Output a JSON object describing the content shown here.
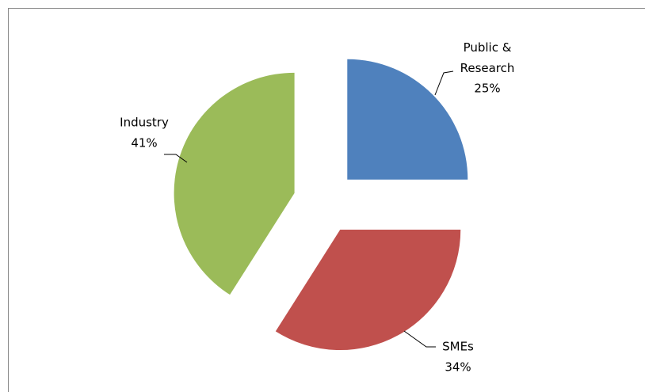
{
  "chart_data": {
    "type": "pie",
    "categories": [
      "Public & Research",
      "SMEs",
      "Industry"
    ],
    "values": [
      25,
      34,
      41
    ],
    "value_labels": [
      "25%",
      "34%",
      "41%"
    ],
    "colors": [
      "#4f81bd",
      "#c0504d",
      "#9bbb59"
    ]
  }
}
